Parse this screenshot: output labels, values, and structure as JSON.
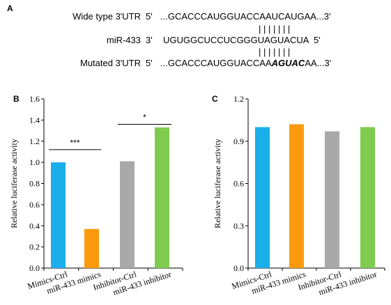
{
  "panel_a": {
    "label": "A",
    "rows": [
      {
        "name": "Wide type 3'UTR",
        "prime5": "5'",
        "seq_parts": [
          {
            "t": "...GCACCCAUGGUACCAAUCAUGAA...3'",
            "bi": false
          }
        ]
      },
      {
        "name": "miR-433",
        "prime5": "3'",
        "seq_parts": [
          {
            "t": "UGUGGCUCCUCGGGUAGUACUA",
            "bi": false
          },
          {
            "t": "  5'",
            "bi": false
          }
        ]
      },
      {
        "name": "Mutated 3'UTR",
        "prime5": "5'",
        "seq_parts": [
          {
            "t": "...GCACCCAUGGUACCAA",
            "bi": false
          },
          {
            "t": "AGUAC",
            "bi": true
          },
          {
            "t": "AA...3'",
            "bi": false
          }
        ]
      }
    ],
    "pairing_bars": "| | | | | | |"
  },
  "chart_data": [
    {
      "panel_label": "B",
      "type": "bar",
      "ylabel": "Relative luciferase activity",
      "ylim": [
        0.0,
        1.6
      ],
      "yticks": [
        "0.0",
        "0.2",
        "0.4",
        "0.6",
        "0.8",
        "1.0",
        "1.2",
        "1.4",
        "1.6"
      ],
      "categories": [
        "Mimics-Ctrl",
        "miR-433 mimics",
        "Inhibitor-Ctrl",
        "miR-433 inhibitor"
      ],
      "values": [
        1.0,
        0.37,
        1.01,
        1.33
      ],
      "colors": [
        "#1aaeea",
        "#fb9a0e",
        "#a9a9a9",
        "#7ecb4f"
      ],
      "significance": [
        {
          "from": 0,
          "to": 1,
          "label": "***",
          "y": 1.12
        },
        {
          "from": 2,
          "to": 3,
          "label": "*",
          "y": 1.36
        }
      ]
    },
    {
      "panel_label": "C",
      "type": "bar",
      "ylabel": "Relative luciferase activity",
      "ylim": [
        0.0,
        1.2
      ],
      "yticks": [
        "0.0",
        "0.3",
        "0.6",
        "0.9",
        "1.2"
      ],
      "categories": [
        "Mimics-Ctrl",
        "miR-433 mimics",
        "Inhibitor-Ctrl",
        "miR-433 inhibitor"
      ],
      "values": [
        1.0,
        1.02,
        0.97,
        1.0
      ],
      "colors": [
        "#1aaeea",
        "#fb9a0e",
        "#a9a9a9",
        "#7ecb4f"
      ],
      "significance": []
    }
  ]
}
